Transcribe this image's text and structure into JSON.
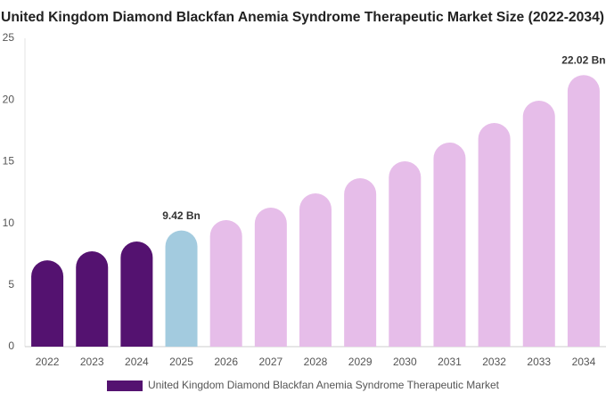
{
  "chart_data": {
    "type": "bar",
    "title": "United Kingdom Diamond Blackfan Anemia Syndrome Therapeutic Market Size (2022-2034)",
    "categories": [
      "2022",
      "2023",
      "2024",
      "2025",
      "2026",
      "2027",
      "2028",
      "2029",
      "2030",
      "2031",
      "2032",
      "2033",
      "2034"
    ],
    "series": [
      {
        "name": "United Kingdom Diamond Blackfan Anemia Syndrome Therapeutic Market",
        "color": "#541270",
        "colors": [
          "#541270",
          "#541270",
          "#541270",
          "#a3cbdf",
          "#e6bde9",
          "#e6bde9",
          "#e6bde9",
          "#e6bde9",
          "#e6bde9",
          "#e6bde9",
          "#e6bde9",
          "#e6bde9",
          "#e6bde9"
        ],
        "values": [
          7.0,
          7.73,
          8.53,
          9.42,
          10.26,
          11.27,
          12.43,
          13.66,
          15.03,
          16.55,
          18.14,
          19.94,
          22.02
        ],
        "value_labels": [
          null,
          null,
          null,
          "9.42 Bn",
          null,
          null,
          null,
          null,
          null,
          null,
          null,
          null,
          "22.02 Bn"
        ]
      }
    ],
    "ylim": [
      0,
      25
    ],
    "yticks": [
      0,
      5,
      10,
      15,
      20,
      25
    ],
    "grid": false
  }
}
